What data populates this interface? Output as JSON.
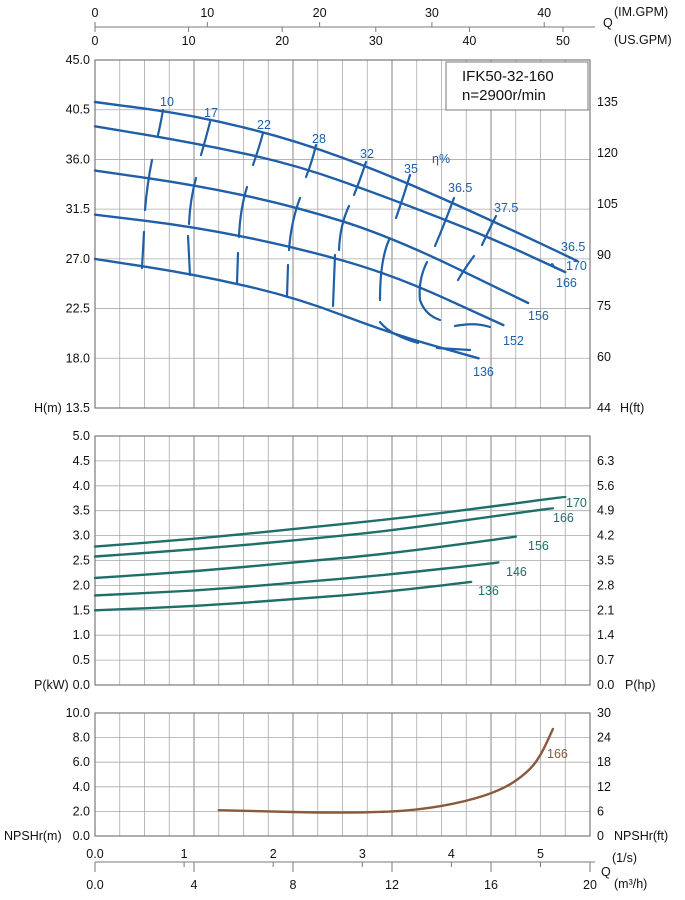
{
  "colors": {
    "head": "#1f5fa8",
    "eff": "#1f5fa8",
    "power": "#1e6f6a",
    "npsh": "#8a5a3c",
    "grid": "#a9a9a9",
    "frame": "#7a7a7a"
  },
  "top_axes": {
    "im_gpm": {
      "label": "(IM.GPM)",
      "ticks": [
        "0",
        "10",
        "20",
        "30",
        "40"
      ]
    },
    "us_gpm": {
      "label": "(US.GPM)",
      "ticks": [
        "0",
        "10",
        "20",
        "30",
        "40",
        "50"
      ]
    },
    "q_label": "Q"
  },
  "bottom_axes": {
    "ls": {
      "label": "(1/s)",
      "ticks": [
        "0.0",
        "1",
        "2",
        "3",
        "4",
        "5"
      ]
    },
    "m3h": {
      "label": "(m³/h)",
      "ticks": [
        "0.0",
        "4",
        "8",
        "12",
        "16",
        "20"
      ]
    },
    "q_label": "Q"
  },
  "chart_data": [
    {
      "type": "line",
      "title": "IFK50-32-160",
      "subtitle": "n=2900r/min",
      "ylabel": "H(m)",
      "y2label": "H(ft)",
      "ylim": [
        13.5,
        45.0
      ],
      "y_ticks": [
        "45.0",
        "40.5",
        "36.0",
        "31.5",
        "27.0",
        "22.5",
        "18.0",
        "13.5"
      ],
      "y2_ticks": [
        "135",
        "120",
        "105",
        "90",
        "75",
        "60",
        "44"
      ],
      "xlim_m3h": [
        0,
        20
      ],
      "series": [
        {
          "name": "170",
          "x": [
            0,
            4,
            8,
            12,
            16,
            19.5
          ],
          "y": [
            41.2,
            40.0,
            37.8,
            34.5,
            30.5,
            26.8
          ]
        },
        {
          "name": "166",
          "x": [
            0,
            4,
            8,
            12,
            16,
            19.0
          ],
          "y": [
            39.0,
            37.5,
            35.6,
            32.4,
            28.9,
            25.8
          ]
        },
        {
          "name": "156",
          "x": [
            0,
            4,
            8,
            12,
            17.5
          ],
          "y": [
            35.0,
            33.7,
            31.8,
            29.0,
            23.0
          ]
        },
        {
          "name": "152",
          "x": [
            0,
            4,
            8,
            12,
            16.5
          ],
          "y": [
            31.0,
            29.9,
            28.1,
            25.6,
            21.0
          ]
        },
        {
          "name": "136",
          "x": [
            0,
            4,
            8,
            12,
            15.5
          ],
          "y": [
            27.0,
            25.6,
            23.6,
            20.2,
            18.0
          ]
        }
      ],
      "efficiency_label": "η%",
      "efficiency_labels": [
        "10",
        "17",
        "22",
        "28",
        "32",
        "35",
        "36.5",
        "37.5",
        "36.5"
      ]
    },
    {
      "type": "line",
      "ylabel": "P(kW)",
      "y2label": "P(hp)",
      "ylim": [
        0.0,
        5.0
      ],
      "y_ticks": [
        "5.0",
        "4.5",
        "4.0",
        "3.5",
        "3.0",
        "2.5",
        "2.0",
        "1.5",
        "1.0",
        "0.5",
        "0.0"
      ],
      "y2_ticks": [
        "6.3",
        "5.6",
        "4.9",
        "4.2",
        "3.5",
        "2.8",
        "2.1",
        "1.4",
        "0.7",
        "0.0"
      ],
      "series": [
        {
          "name": "170",
          "x": [
            0,
            4,
            8,
            12,
            16,
            19.0
          ],
          "y": [
            2.78,
            2.93,
            3.13,
            3.33,
            3.58,
            3.78
          ]
        },
        {
          "name": "166",
          "x": [
            0,
            4,
            8,
            12,
            16,
            18.5
          ],
          "y": [
            2.58,
            2.72,
            2.9,
            3.1,
            3.38,
            3.55
          ]
        },
        {
          "name": "156",
          "x": [
            0,
            4,
            8,
            12,
            17.0
          ],
          "y": [
            2.15,
            2.28,
            2.46,
            2.64,
            2.98
          ]
        },
        {
          "name": "146",
          "x": [
            0,
            4,
            8,
            12,
            16.3
          ],
          "y": [
            1.8,
            1.89,
            2.05,
            2.22,
            2.46
          ]
        },
        {
          "name": "136",
          "x": [
            0,
            4,
            8,
            12,
            15.2
          ],
          "y": [
            1.5,
            1.58,
            1.72,
            1.88,
            2.07
          ]
        }
      ]
    },
    {
      "type": "line",
      "ylabel": "NPSHr(m)",
      "y2label": "NPSHr(ft)",
      "ylim": [
        0.0,
        10.0
      ],
      "y_ticks": [
        "10.0",
        "8.0",
        "6.0",
        "4.0",
        "2.0",
        "0.0"
      ],
      "y2_ticks": [
        "30",
        "24",
        "18",
        "12",
        "6",
        "0"
      ],
      "series": [
        {
          "name": "166",
          "x": [
            5.0,
            7.0,
            9.0,
            11.0,
            13.0,
            15.0,
            16.5,
            17.5,
            18.0,
            18.5
          ],
          "y": [
            2.1,
            2.0,
            1.9,
            1.9,
            2.1,
            2.8,
            3.8,
            5.2,
            6.5,
            8.7
          ]
        }
      ]
    }
  ]
}
